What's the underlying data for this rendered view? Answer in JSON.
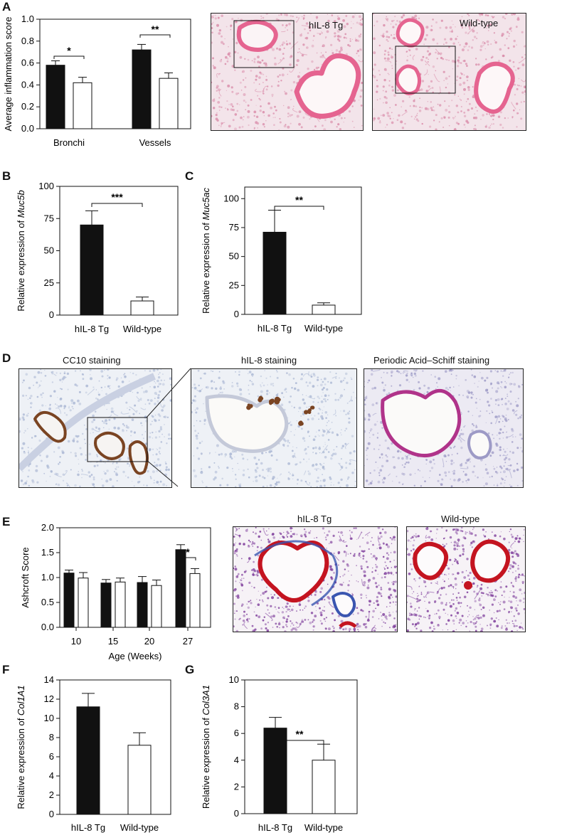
{
  "panels": {
    "A": "A",
    "B": "B",
    "C": "C",
    "D": "D",
    "E": "E",
    "F": "F",
    "G": "G"
  },
  "chart_data": [
    {
      "id": "A",
      "type": "bar",
      "categories": [
        "Bronchi",
        "Vessels"
      ],
      "series": [
        {
          "color": "#111111",
          "values": [
            0.58,
            0.72
          ],
          "errors": [
            0.04,
            0.05
          ]
        },
        {
          "color": "#ffffff",
          "values": [
            0.42,
            0.46
          ],
          "errors": [
            0.05,
            0.05
          ]
        }
      ],
      "ylabel": "Average inflammation score",
      "ylim": [
        0,
        1.0
      ],
      "yticks": [
        0,
        0.2,
        0.4,
        0.6,
        0.8,
        1.0
      ],
      "ytick_labels": [
        "0.0",
        "0.2",
        "0.4",
        "0.6",
        "0.8",
        "1.0"
      ],
      "significance": [
        "*",
        "**"
      ]
    },
    {
      "id": "B",
      "type": "bar",
      "categories": [
        "hIL-8 Tg",
        "Wild-type"
      ],
      "series": [
        {
          "colors": [
            "#111111",
            "#ffffff"
          ],
          "values": [
            70,
            11
          ],
          "errors": [
            11,
            3
          ]
        }
      ],
      "ylabel_prefix": "Relative expression of ",
      "ylabel_gene": "Muc5b",
      "ylim": [
        0,
        100
      ],
      "yticks": [
        0,
        25,
        50,
        75,
        100
      ],
      "ytick_labels": [
        "0",
        "25",
        "50",
        "75",
        "100"
      ],
      "significance": "***"
    },
    {
      "id": "C",
      "type": "bar",
      "categories": [
        "hIL-8 Tg",
        "Wild-type"
      ],
      "series": [
        {
          "colors": [
            "#111111",
            "#ffffff"
          ],
          "values": [
            71,
            8
          ],
          "errors": [
            19,
            2
          ]
        }
      ],
      "ylabel_prefix": "Relative expression of ",
      "ylabel_gene": "Muc5ac",
      "ylim": [
        0,
        110
      ],
      "yticks": [
        0,
        25,
        50,
        75,
        100
      ],
      "ytick_labels": [
        "0",
        "25",
        "50",
        "75",
        "100"
      ],
      "significance": "**"
    },
    {
      "id": "E",
      "type": "bar",
      "categories": [
        "10",
        "15",
        "20",
        "27"
      ],
      "series": [
        {
          "color": "#111111",
          "values": [
            1.09,
            0.89,
            0.9,
            1.56
          ],
          "errors": [
            0.06,
            0.07,
            0.12,
            0.1
          ]
        },
        {
          "color": "#ffffff",
          "values": [
            0.99,
            0.91,
            0.84,
            1.08
          ],
          "errors": [
            0.11,
            0.08,
            0.11,
            0.1
          ]
        }
      ],
      "xlabel": "Age (Weeks)",
      "ylabel": "Ashcroft Score",
      "ylim": [
        0,
        2.0
      ],
      "yticks": [
        0,
        0.5,
        1.0,
        1.5,
        2.0
      ],
      "ytick_labels": [
        "0.0",
        "0.5",
        "1.0",
        "1.5",
        "2.0"
      ],
      "significance": "*"
    },
    {
      "id": "F",
      "type": "bar",
      "categories": [
        "hIL-8 Tg",
        "Wild-type"
      ],
      "series": [
        {
          "colors": [
            "#111111",
            "#ffffff"
          ],
          "values": [
            11.2,
            7.2
          ],
          "errors": [
            1.4,
            1.3
          ]
        }
      ],
      "ylabel_prefix": "Relative expression of ",
      "ylabel_gene": "Col1A1",
      "ylim": [
        0,
        14
      ],
      "yticks": [
        0,
        2,
        4,
        6,
        8,
        10,
        12,
        14
      ],
      "ytick_labels": [
        "0",
        "2",
        "4",
        "6",
        "8",
        "10",
        "12",
        "14"
      ]
    },
    {
      "id": "G",
      "type": "bar",
      "categories": [
        "hIL-8 Tg",
        "Wild-type"
      ],
      "series": [
        {
          "colors": [
            "#111111",
            "#ffffff"
          ],
          "values": [
            6.4,
            4.0
          ],
          "errors": [
            0.8,
            1.2
          ]
        }
      ],
      "ylabel_prefix": "Relative expression of ",
      "ylabel_gene": "Col3A1",
      "ylim": [
        0,
        10
      ],
      "yticks": [
        0,
        2,
        4,
        6,
        8,
        10
      ],
      "ytick_labels": [
        "0",
        "2",
        "4",
        "6",
        "8",
        "10"
      ],
      "significance": "**"
    }
  ],
  "micrographs": {
    "a_tg_label": "hIL-8 Tg",
    "a_wt_label": "Wild-type",
    "d_cc10_title": "CC10 staining",
    "d_il8_title": "hIL-8 staining",
    "d_pas_title": "Periodic Acid–Schiff staining",
    "e_tg_title": "hIL-8 Tg",
    "e_wt_title": "Wild-type",
    "colors": {
      "he_bg": "#f3e4ea",
      "he_tissue": "#d98aa8",
      "he_epith": "#e56490",
      "ihc_bg": "#eef1f6",
      "ihc_tissue": "#a9b6d3",
      "ihc_brown": "#7a4422",
      "pas_bg": "#eceaf3",
      "pas_tissue": "#9d9ac6",
      "pas_magenta": "#b0338a",
      "tri_bg": "#f6f2f6",
      "tri_tissue": "#7c3a9a",
      "tri_red": "#c41420",
      "tri_blue": "#3a55b0"
    }
  }
}
